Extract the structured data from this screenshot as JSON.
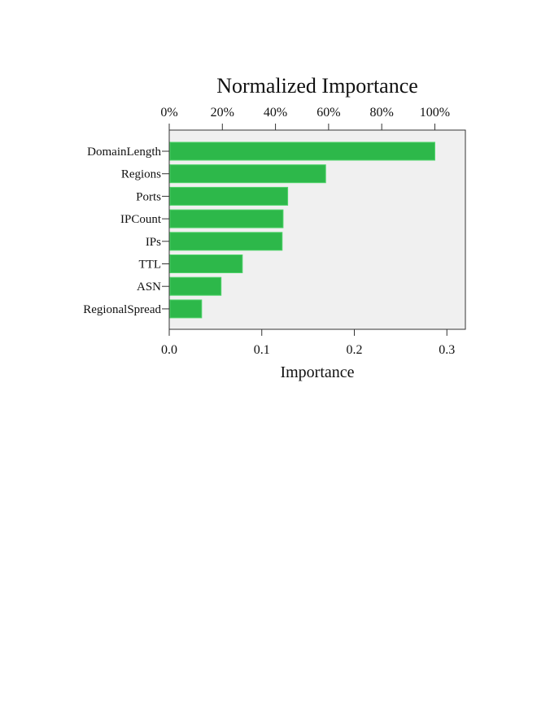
{
  "chart_data": {
    "type": "bar",
    "orientation": "horizontal",
    "title": "Normalized Importance",
    "xlabel": "Importance",
    "ylabel": "",
    "categories": [
      "DomainLength",
      "Regions",
      "Ports",
      "IPCount",
      "IPs",
      "TTL",
      "ASN",
      "RegionalSpread"
    ],
    "values": [
      0.287,
      0.169,
      0.128,
      0.123,
      0.122,
      0.079,
      0.056,
      0.035
    ],
    "xlim": [
      0,
      0.32
    ],
    "xticks": [
      0.0,
      0.1,
      0.2,
      0.3
    ],
    "xtick_labels": [
      "0.0",
      "0.1",
      "0.2",
      "0.3"
    ],
    "top_axis_ticks": [
      "0%",
      "20%",
      "40%",
      "60%",
      "80%",
      "100%"
    ],
    "top_axis_max_value": 0.287,
    "grid": false,
    "legend": "none",
    "bar_color": "#2db84a",
    "bar_edge_color": "#4fd36a",
    "plot_background": "#f0f0f0"
  }
}
